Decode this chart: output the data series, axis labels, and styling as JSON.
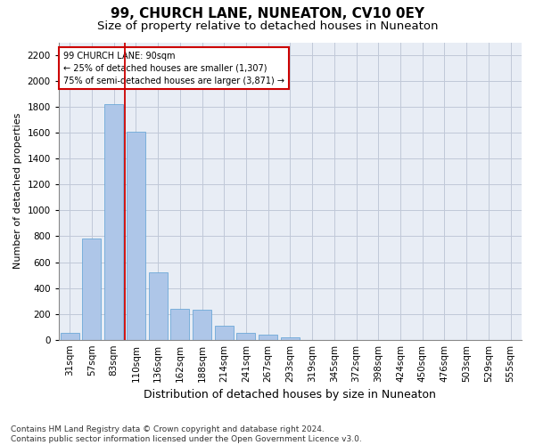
{
  "title": "99, CHURCH LANE, NUNEATON, CV10 0EY",
  "subtitle": "Size of property relative to detached houses in Nuneaton",
  "xlabel": "Distribution of detached houses by size in Nuneaton",
  "ylabel": "Number of detached properties",
  "categories": [
    "31sqm",
    "57sqm",
    "83sqm",
    "110sqm",
    "136sqm",
    "162sqm",
    "188sqm",
    "214sqm",
    "241sqm",
    "267sqm",
    "293sqm",
    "319sqm",
    "345sqm",
    "372sqm",
    "398sqm",
    "424sqm",
    "450sqm",
    "476sqm",
    "503sqm",
    "529sqm",
    "555sqm"
  ],
  "values": [
    50,
    780,
    1820,
    1610,
    520,
    240,
    235,
    105,
    55,
    40,
    20,
    0,
    0,
    0,
    0,
    0,
    0,
    0,
    0,
    0,
    0
  ],
  "bar_color": "#aec6e8",
  "bar_edge_color": "#5a9fd4",
  "annotation_line1": "99 CHURCH LANE: 90sqm",
  "annotation_line2": "← 25% of detached houses are smaller (1,307)",
  "annotation_line3": "75% of semi-detached houses are larger (3,871) →",
  "annotation_box_color": "#ffffff",
  "annotation_box_edge": "#cc0000",
  "vline_color": "#cc0000",
  "ylim": [
    0,
    2300
  ],
  "yticks": [
    0,
    200,
    400,
    600,
    800,
    1000,
    1200,
    1400,
    1600,
    1800,
    2000,
    2200
  ],
  "grid_color": "#c0c8d8",
  "background_color": "#e8edf5",
  "footnote": "Contains HM Land Registry data © Crown copyright and database right 2024.\nContains public sector information licensed under the Open Government Licence v3.0.",
  "title_fontsize": 11,
  "subtitle_fontsize": 9.5,
  "xlabel_fontsize": 9,
  "ylabel_fontsize": 8,
  "tick_fontsize": 7.5,
  "footnote_fontsize": 6.5
}
